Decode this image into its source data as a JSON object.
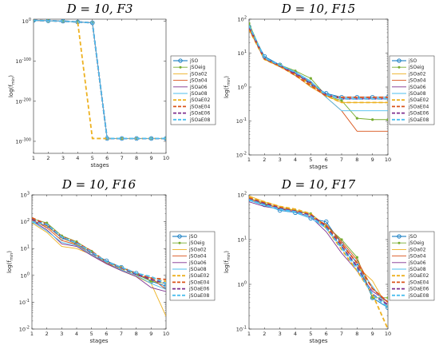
{
  "series_names": [
    "jSO",
    "jSOeig",
    "jSOa02",
    "jSOa04",
    "jSOa06",
    "jSOa08",
    "jSOaE02",
    "jSOaE04",
    "jSOaE06",
    "jSOaE08"
  ],
  "series_colors": [
    "#0072BD",
    "#77AC30",
    "#EDB120",
    "#D95319",
    "#7E2F8E",
    "#4DBEEE",
    "#EDB120",
    "#D95319",
    "#7E2F8E",
    "#4DBEEE"
  ],
  "series_dashed": [
    false,
    false,
    false,
    false,
    false,
    false,
    true,
    true,
    true,
    true
  ],
  "series_markers": [
    "circle",
    "dot",
    "none",
    "none",
    "none",
    "none",
    "none",
    "none",
    "none",
    "none"
  ],
  "chart_data": [
    {
      "type": "line",
      "title_prefix": "D = 10, ",
      "title_fn": "F3",
      "xlabel": "stages",
      "ylabel_base": "log(f",
      "ylabel_sub": "min",
      "ylabel_end": ")",
      "yscale": "log",
      "ylim_exp": [
        -330,
        5
      ],
      "ytick_exps": [
        -300,
        -200,
        -100,
        0
      ],
      "xlim": [
        1,
        10
      ],
      "x": [
        1,
        2,
        3,
        4,
        5,
        6,
        7,
        8,
        9,
        10
      ],
      "series_exp": [
        [
          2,
          1,
          0,
          -2,
          -4,
          -293,
          -293,
          -293,
          -293,
          -293
        ],
        [
          2,
          1,
          0,
          -2,
          -4,
          -293,
          -293,
          -293,
          -293,
          -293
        ],
        [
          2,
          1,
          0,
          -2,
          -4,
          -293,
          -293,
          -293,
          -293,
          -293
        ],
        [
          2,
          1,
          0,
          -2,
          -4,
          -293,
          -293,
          -293,
          -293,
          -293
        ],
        [
          2,
          1,
          0,
          -2,
          -4,
          -293,
          -293,
          -293,
          -293,
          -293
        ],
        [
          2,
          1,
          0,
          -2,
          -4,
          -293,
          -293,
          -293,
          -293,
          -293
        ],
        [
          2,
          1,
          0,
          -2,
          -293,
          -293,
          -293,
          -293,
          -293,
          -293
        ],
        [
          2,
          1,
          0,
          -2,
          -4,
          -293,
          -293,
          -293,
          -293,
          -293
        ],
        [
          2,
          1,
          0,
          -2,
          -4,
          -293,
          -293,
          -293,
          -293,
          -293
        ],
        [
          2,
          1,
          0,
          -2,
          -4,
          -293,
          -293,
          -293,
          -293,
          -293
        ]
      ]
    },
    {
      "type": "line",
      "title_prefix": "D = 10, ",
      "title_fn": "F15",
      "xlabel": "stages",
      "ylabel_base": "log(f",
      "ylabel_sub": "min",
      "ylabel_end": ")",
      "yscale": "log",
      "ylim_exp": [
        -2,
        2
      ],
      "ytick_exps": [
        -2,
        -1,
        0,
        1,
        2
      ],
      "xlim": [
        1,
        10
      ],
      "x": [
        1,
        2,
        3,
        4,
        5,
        6,
        7,
        8,
        9,
        10
      ],
      "series": [
        [
          60,
          8,
          4.5,
          2.5,
          1.2,
          0.65,
          0.5,
          0.5,
          0.5,
          0.5
        ],
        [
          75,
          7,
          4.5,
          3,
          1.8,
          0.55,
          0.4,
          0.12,
          0.11,
          0.11
        ],
        [
          50,
          6.5,
          4,
          2.2,
          1,
          0.55,
          0.35,
          0.35,
          0.35,
          0.35
        ],
        [
          55,
          6.8,
          4,
          2.5,
          1.3,
          0.5,
          0.2,
          0.05,
          0.05,
          0.05
        ],
        [
          60,
          7,
          4.2,
          2.6,
          1.4,
          0.6,
          0.45,
          0.45,
          0.45,
          0.45
        ],
        [
          65,
          7.2,
          4.5,
          2.8,
          1.5,
          0.5,
          0.2,
          0.2,
          0.2,
          0.2
        ],
        [
          50,
          6.5,
          4,
          2.3,
          1.2,
          0.55,
          0.35,
          0.35,
          0.35,
          0.35
        ],
        [
          55,
          6.8,
          4.2,
          2.2,
          1.1,
          0.55,
          0.5,
          0.5,
          0.5,
          0.5
        ],
        [
          60,
          7,
          4.3,
          2.5,
          1.3,
          0.6,
          0.45,
          0.45,
          0.45,
          0.45
        ],
        [
          65,
          7.2,
          4.4,
          2.7,
          1.4,
          0.6,
          0.45,
          0.45,
          0.45,
          0.45
        ]
      ]
    },
    {
      "type": "line",
      "title_prefix": "D = 10, ",
      "title_fn": "F16",
      "xlabel": "stages",
      "ylabel_base": "log(f",
      "ylabel_sub": "min",
      "ylabel_end": ")",
      "yscale": "log",
      "ylim_exp": [
        -2,
        3
      ],
      "ytick_exps": [
        -2,
        -1,
        0,
        1,
        2,
        3
      ],
      "xlim": [
        1,
        10
      ],
      "x": [
        1,
        2,
        3,
        4,
        5,
        6,
        7,
        8,
        9,
        10
      ],
      "series": [
        [
          100,
          70,
          25,
          15,
          7,
          3.5,
          2,
          1.2,
          0.6,
          0.4
        ],
        [
          130,
          90,
          30,
          18,
          8,
          3,
          2,
          1.1,
          0.6,
          0.5
        ],
        [
          90,
          40,
          12,
          10,
          6,
          2.8,
          1.5,
          0.9,
          0.5,
          0.03
        ],
        [
          120,
          60,
          20,
          14,
          6,
          2.8,
          1.6,
          1,
          0.8,
          0.3
        ],
        [
          110,
          50,
          15,
          12,
          5.5,
          2.7,
          1.5,
          0.9,
          0.35,
          0.25
        ],
        [
          100,
          45,
          17,
          13,
          6,
          3,
          1.6,
          1,
          0.5,
          0.3
        ],
        [
          110,
          70,
          25,
          15,
          7,
          3,
          1.8,
          1.1,
          0.7,
          0.6
        ],
        [
          140,
          80,
          28,
          17,
          8,
          3.2,
          2,
          1.2,
          0.8,
          0.7
        ],
        [
          120,
          75,
          26,
          16,
          7,
          3.1,
          1.9,
          1.1,
          0.7,
          0.5
        ],
        [
          100,
          80,
          27,
          16,
          7.5,
          3.2,
          2,
          1.2,
          0.9,
          0.5
        ]
      ]
    },
    {
      "type": "line",
      "title_prefix": "D = 10, ",
      "title_fn": "F17",
      "xlabel": "stages",
      "ylabel_base": "log(f",
      "ylabel_sub": "min",
      "ylabel_end": ")",
      "yscale": "log",
      "ylim_exp": [
        -1,
        2
      ],
      "ytick_exps": [
        -1,
        0,
        1,
        2
      ],
      "xlim": [
        1,
        10
      ],
      "x": [
        1,
        2,
        3,
        4,
        5,
        6,
        7,
        8,
        9,
        10
      ],
      "series": [
        [
          80,
          60,
          45,
          40,
          30,
          25,
          8,
          3,
          0.5,
          0.3
        ],
        [
          85,
          65,
          50,
          45,
          38,
          20,
          10,
          4,
          0.5,
          0.5
        ],
        [
          95,
          70,
          55,
          45,
          35,
          18,
          7,
          2.5,
          1.2,
          0.3
        ],
        [
          80,
          62,
          50,
          42,
          32,
          22,
          9,
          3.5,
          0.8,
          0.4
        ],
        [
          70,
          55,
          48,
          42,
          32,
          15,
          5,
          2,
          0.7,
          0.4
        ],
        [
          75,
          58,
          46,
          40,
          30,
          18,
          7,
          2.5,
          0.9,
          0.3
        ],
        [
          90,
          70,
          55,
          48,
          38,
          18,
          6,
          2,
          0.6,
          0.1
        ],
        [
          85,
          66,
          52,
          44,
          36,
          20,
          8,
          3,
          0.8,
          0.4
        ],
        [
          80,
          64,
          50,
          43,
          35,
          19,
          7,
          2.5,
          0.6,
          0.35
        ],
        [
          78,
          60,
          48,
          42,
          33,
          18,
          6.5,
          2.2,
          0.6,
          0.3
        ]
      ]
    }
  ]
}
